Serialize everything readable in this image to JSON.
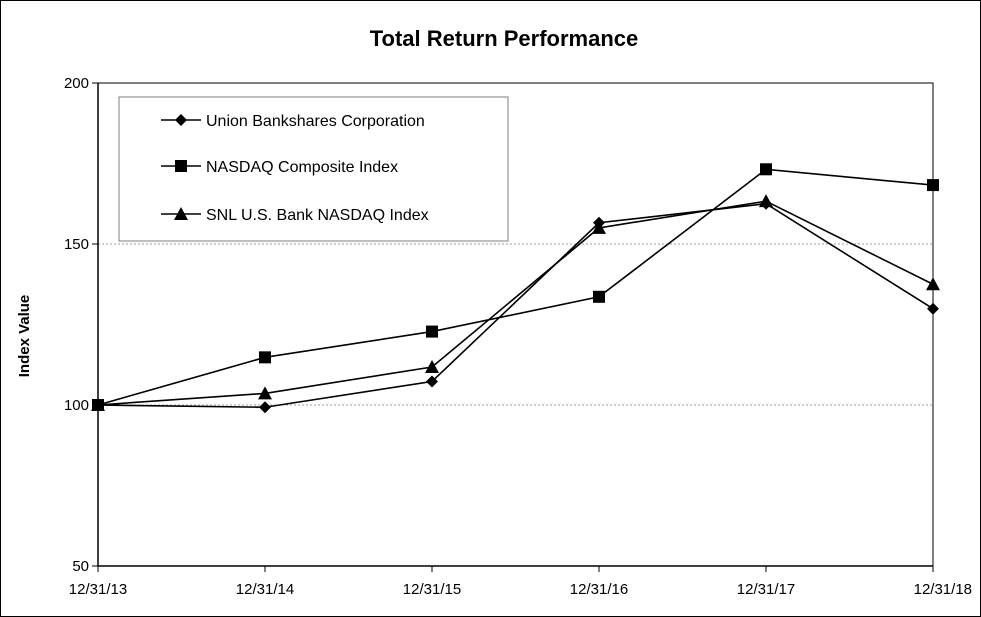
{
  "chart_data": {
    "type": "line",
    "title": "Total Return Performance",
    "xlabel": "",
    "ylabel": "Index Value",
    "categories": [
      "12/31/13",
      "12/31/14",
      "12/31/15",
      "12/31/16",
      "12/31/17",
      "12/31/18"
    ],
    "ylim": [
      50,
      200
    ],
    "yticks": [
      50,
      100,
      150,
      200
    ],
    "grid": "horizontal dashed at 100 and 150",
    "legend_position": "top-left",
    "series": [
      {
        "name": "Union Bankshares Corporation",
        "marker": "diamond",
        "color": "#000000",
        "values": [
          100.0,
          99.3,
          107.3,
          156.6,
          162.5,
          129.9
        ]
      },
      {
        "name": "NASDAQ Composite Index",
        "marker": "square",
        "color": "#000000",
        "values": [
          100.0,
          114.8,
          122.8,
          133.6,
          173.2,
          168.3
        ]
      },
      {
        "name": "SNL U.S. Bank NASDAQ Index",
        "marker": "triangle",
        "color": "#000000",
        "values": [
          100.0,
          103.6,
          111.8,
          155.0,
          163.3,
          137.5
        ]
      }
    ]
  }
}
